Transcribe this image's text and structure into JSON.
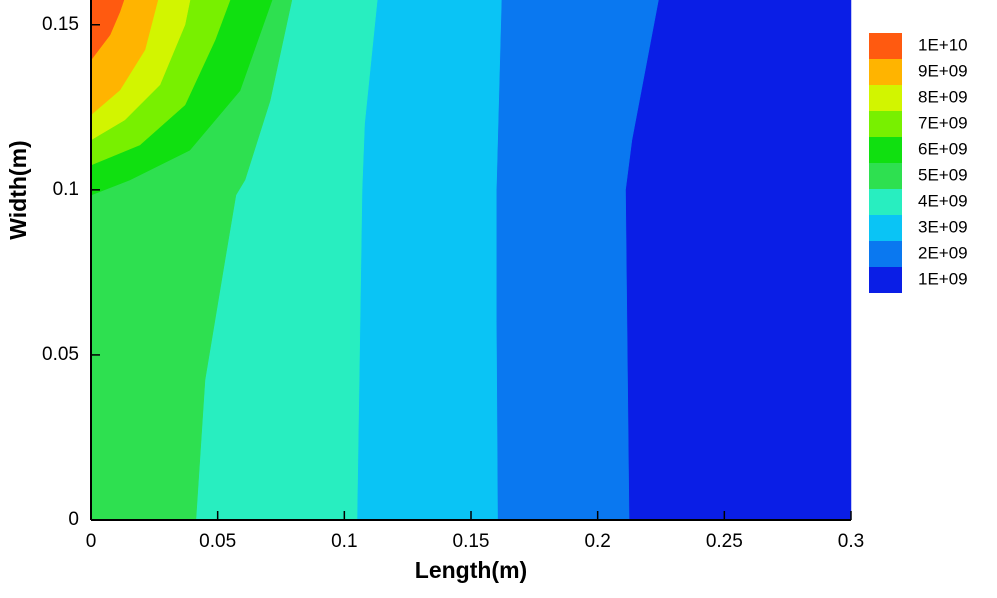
{
  "chart_data": {
    "type": "contour",
    "xlabel": "Length(m)",
    "ylabel": "Width(m)",
    "xlim": [
      0,
      0.3
    ],
    "ylim": [
      0,
      0.1575
    ],
    "xticks": [
      0,
      0.05,
      0.1,
      0.15,
      0.2,
      0.25,
      0.3
    ],
    "yticks": [
      0,
      0.05,
      0.1,
      0.15
    ],
    "series": [
      {
        "name": "1E+09",
        "color": "#0a1ee6",
        "x": [
          0,
          0.3,
          0.3,
          0
        ],
        "y": [
          0.1575,
          0.1575,
          0,
          0
        ]
      },
      {
        "name": "2E+09",
        "color": "#0a78f0",
        "x": [
          0,
          0.224,
          0.2135,
          0.211,
          0.2124,
          0
        ],
        "y": [
          0.1575,
          0.1575,
          0.115,
          0.1,
          0,
          0
        ]
      },
      {
        "name": "3E+09",
        "color": "#0ac4f5",
        "x": [
          0,
          0.162,
          0.16,
          0.16,
          0.1605,
          0
        ],
        "y": [
          0.1575,
          0.1575,
          0.1,
          0.06,
          0,
          0
        ]
      },
      {
        "name": "4E+09",
        "color": "#28eec0",
        "x": [
          0,
          0.113,
          0.108,
          0.107,
          0.105,
          0
        ],
        "y": [
          0.1575,
          0.1575,
          0.12,
          0.1,
          0,
          0
        ]
      },
      {
        "name": "5E+09",
        "color": "#2ee050",
        "x": [
          0,
          0.0793,
          0.0707,
          0.0608,
          0.0572,
          0.0529,
          0.045,
          0.0414,
          0
        ],
        "y": [
          0.1575,
          0.1575,
          0.127,
          0.103,
          0.0984,
          0.0788,
          0.0424,
          0,
          0
        ]
      },
      {
        "name": "6E+09",
        "color": "#10e010",
        "x": [
          0,
          0.0715,
          0.0588,
          0.039,
          0.0154,
          0
        ],
        "y": [
          0.1575,
          0.1575,
          0.13,
          0.112,
          0.103,
          0.0984
        ]
      },
      {
        "name": "7E+09",
        "color": "#78f000",
        "x": [
          0,
          0.0549,
          0.049,
          0.0371,
          0.0193,
          0
        ],
        "y": [
          0.1575,
          0.1575,
          0.1454,
          0.1257,
          0.1136,
          0.1075
        ]
      },
      {
        "name": "8E+09",
        "color": "#d2f500",
        "x": [
          0,
          0.0391,
          0.0371,
          0.0272,
          0.0134,
          0
        ],
        "y": [
          0.1575,
          0.1575,
          0.15,
          0.1318,
          0.1212,
          0.1151
        ]
      },
      {
        "name": "9E+09",
        "color": "#ffb400",
        "x": [
          0,
          0.0264,
          0.0213,
          0.0114,
          0
        ],
        "y": [
          0.1575,
          0.1575,
          0.1424,
          0.1302,
          0.1227
        ]
      },
      {
        "name": "1E+10",
        "color": "#ff5a10",
        "x": [
          0,
          0.013,
          0.0114,
          0.0075,
          0
        ],
        "y": [
          0.1575,
          0.1575,
          0.1539,
          0.1469,
          0.1393
        ]
      }
    ]
  }
}
